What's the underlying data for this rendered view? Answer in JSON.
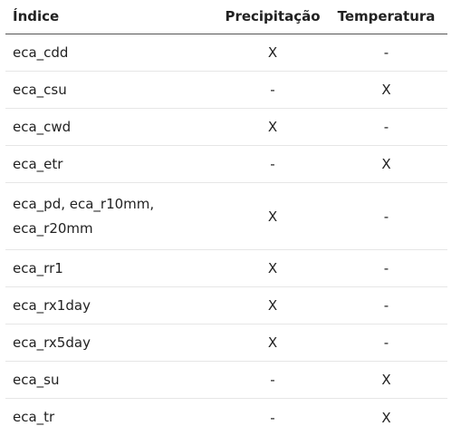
{
  "table": {
    "headers": {
      "index": "Índice",
      "precipitation": "Precipitação",
      "temperature": "Temperatura"
    },
    "rows": [
      {
        "index": "eca_cdd",
        "precipitation": "X",
        "temperature": "-"
      },
      {
        "index": "eca_csu",
        "precipitation": "-",
        "temperature": "X"
      },
      {
        "index": "eca_cwd",
        "precipitation": "X",
        "temperature": "-"
      },
      {
        "index": "eca_etr",
        "precipitation": "-",
        "temperature": "X"
      },
      {
        "index": "eca_pd, eca_r10mm, eca_r20mm",
        "precipitation": "X",
        "temperature": "-"
      },
      {
        "index": "eca_rr1",
        "precipitation": "X",
        "temperature": "-"
      },
      {
        "index": "eca_rx1day",
        "precipitation": "X",
        "temperature": "-"
      },
      {
        "index": "eca_rx5day",
        "precipitation": "X",
        "temperature": "-"
      },
      {
        "index": "eca_su",
        "precipitation": "-",
        "temperature": "X"
      },
      {
        "index": "eca_tr",
        "precipitation": "-",
        "temperature": "X"
      }
    ]
  }
}
